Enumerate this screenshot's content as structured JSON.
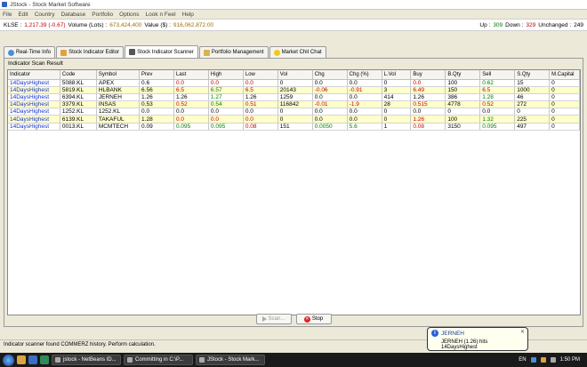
{
  "window": {
    "title": "JStock - Stock Market Software"
  },
  "menu": [
    "File",
    "Edit",
    "Country",
    "Database",
    "Portfolio",
    "Options",
    "Look n Feel",
    "Help"
  ],
  "ticker": {
    "index": "KLSE :",
    "change": "1,217.39 (-0.67)",
    "volume_label": "Volume (Lots) :",
    "volume": "673,424,400",
    "value_label": "Value ($) :",
    "value": "916,062,872.00",
    "up_label": "Up :",
    "up": "309",
    "down_label": "Down :",
    "down": "329",
    "unchanged_label": "Unchanged :",
    "unchanged": "249"
  },
  "tabs": [
    {
      "label": "Real-Time Info",
      "icon": "clock-icon"
    },
    {
      "label": "Stock Indicator Editor",
      "icon": "pencil-icon"
    },
    {
      "label": "Stock Indicator Scanner",
      "icon": "binoculars-icon"
    },
    {
      "label": "Portfolio Management",
      "icon": "folder-icon"
    },
    {
      "label": "Market Chit Chat",
      "icon": "smiley-icon"
    }
  ],
  "panel": {
    "group_label": "Indicator Scan Result"
  },
  "table": {
    "columns": [
      "Indicator",
      "Code",
      "Symbol",
      "Prev",
      "Last",
      "High",
      "Low",
      "Vol",
      "Chg",
      "Chg (%)",
      "L.Vol",
      "Buy",
      "B.Qty",
      "Sell",
      "S.Qty",
      "M.Capital"
    ],
    "rows": [
      [
        "14DaysHighest",
        "5088.KL",
        "APEX",
        "0.6",
        "0.0",
        "0.0",
        "0.0",
        "0",
        "0.0",
        "0.0",
        "0",
        "0.0",
        "100",
        "0.62",
        "15",
        "0"
      ],
      [
        "14DaysHighest",
        "5819.KL",
        "HLBANK",
        "6.56",
        "6.5",
        "6.57",
        "6.5",
        "20143",
        "-0.06",
        "-0.91",
        "3",
        "6.49",
        "150",
        "6.5",
        "1000",
        "0"
      ],
      [
        "14DaysHighest",
        "6394.KL",
        "JERNEH",
        "1.26",
        "1.26",
        "1.27",
        "1.26",
        "1259",
        "0.0",
        "0.0",
        "414",
        "1.26",
        "386",
        "1.28",
        "46",
        "0"
      ],
      [
        "14DaysHighest",
        "3379.KL",
        "INSAS",
        "0.53",
        "0.52",
        "0.54",
        "0.51",
        "116842",
        "-0.01",
        "-1.9",
        "28",
        "0.515",
        "4778",
        "0.52",
        "272",
        "0"
      ],
      [
        "14DaysHighest",
        "1252.KL",
        "1252.KL",
        "0.0",
        "0.0",
        "0.0",
        "0.0",
        "0",
        "0.0",
        "0.0",
        "0",
        "0.0",
        "0",
        "0.0",
        "0",
        "0"
      ],
      [
        "14DaysHighest",
        "6139.KL",
        "TAKAFUL",
        "1.28",
        "0.0",
        "0.0",
        "0.0",
        "0",
        "0.0",
        "0.0",
        "0",
        "1.26",
        "100",
        "1.32",
        "225",
        "0"
      ],
      [
        "14DaysHighest",
        "0013.KL",
        "MCMTECH",
        "0.09",
        "0.095",
        "0.095",
        "0.08",
        "151",
        "0.0050",
        "5.6",
        "1",
        "0.08",
        "3150",
        "0.095",
        "497",
        "0"
      ]
    ],
    "cell_colors": [
      [
        "",
        "",
        "",
        "",
        "r",
        "r",
        "r",
        "",
        "",
        "",
        "",
        "r",
        "",
        "g",
        "",
        ""
      ],
      [
        "",
        "",
        "",
        "",
        "r",
        "g",
        "r",
        "",
        "r",
        "r",
        "",
        "r",
        "",
        "r",
        "",
        ""
      ],
      [
        "",
        "",
        "",
        "",
        "",
        "g",
        "",
        "",
        "",
        "",
        "",
        "",
        "",
        "g",
        "",
        ""
      ],
      [
        "",
        "",
        "",
        "",
        "r",
        "g",
        "r",
        "",
        "r",
        "r",
        "",
        "r",
        "",
        "r",
        "",
        ""
      ],
      [
        "",
        "",
        "",
        "",
        "",
        "",
        "",
        "",
        "",
        "",
        "",
        "",
        "",
        "",
        "",
        ""
      ],
      [
        "",
        "",
        "",
        "",
        "r",
        "r",
        "r",
        "",
        "",
        "",
        "",
        "r",
        "",
        "g",
        "",
        ""
      ],
      [
        "",
        "",
        "",
        "",
        "g",
        "g",
        "r",
        "",
        "g",
        "g",
        "",
        "r",
        "",
        "g",
        "",
        ""
      ]
    ]
  },
  "buttons": {
    "scan": "Scan...",
    "stop": "Stop"
  },
  "status": {
    "text": "Indicator scanner found COMMERZ history. Perform calculation."
  },
  "balloon": {
    "title": "JERNEH",
    "message": "JERNEH (1.26) hits 14DaysHighest"
  },
  "taskbar": {
    "tasks": [
      "jstock - NetBeans ID...",
      "Committing in C:\\P...",
      "JStock - Stock Mark..."
    ],
    "lang": "EN",
    "time": "1:50 PM"
  },
  "colors": {
    "up": "#008000",
    "down": "#c00000",
    "indicator": "#1533cc",
    "alt_row": "#ffffcc"
  }
}
